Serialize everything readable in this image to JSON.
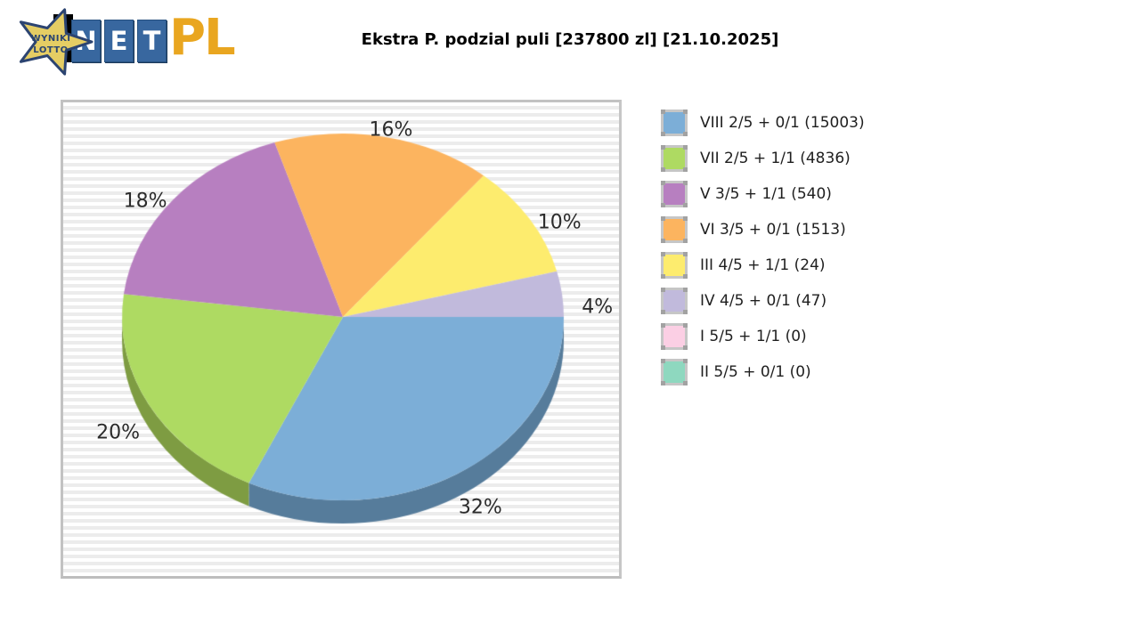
{
  "logo": {
    "badge_line1": "WYNIKI",
    "badge_line2": "LOTTO",
    "net_letters": [
      "N",
      "E",
      "T"
    ],
    "domain_suffix": "PL"
  },
  "header": {
    "title": "Ekstra P. podzial puli [237800 zl] [21.10.2025]"
  },
  "chart_data": {
    "type": "pie",
    "style": "3d",
    "title": "Ekstra P. podzial puli [237800 zl] [21.10.2025]",
    "pool_amount": "237800 zl",
    "draw_date": "21.10.2025",
    "legend_position": "right",
    "slices": [
      {
        "legend_label": "VIII 2/5 + 0/1 (15003)",
        "tier": "VIII 2/5 + 0/1",
        "winners": 15003,
        "pct": 32,
        "color": "#7caed7",
        "side_color": "#567c9b"
      },
      {
        "legend_label": "VII 2/5 + 1/1 (4836)",
        "tier": "VII 2/5 + 1/1",
        "winners": 4836,
        "pct": 20,
        "color": "#aeda62",
        "side_color": "#7e9c42"
      },
      {
        "legend_label": "V 3/5 + 1/1 (540)",
        "tier": "V 3/5 + 1/1",
        "winners": 540,
        "pct": 18,
        "color": "#b77fc0",
        "side_color": "#8c5a94"
      },
      {
        "legend_label": "VI 3/5 + 0/1 (1513)",
        "tier": "VI 3/5 + 0/1",
        "winners": 1513,
        "pct": 16,
        "color": "#fcb45f",
        "side_color": "#c78436"
      },
      {
        "legend_label": "III 4/5 + 1/1 (24)",
        "tier": "III 4/5 + 1/1",
        "winners": 24,
        "pct": 10,
        "color": "#fdec6e",
        "side_color": "#c9b93f"
      },
      {
        "legend_label": "IV 4/5 + 0/1 (47)",
        "tier": "IV 4/5 + 0/1",
        "winners": 47,
        "pct": 4,
        "color": "#c1badc",
        "side_color": "#918aae"
      },
      {
        "legend_label": "I 5/5 + 1/1 (0)",
        "tier": "I 5/5 + 1/1",
        "winners": 0,
        "pct": 0,
        "color": "#fbcfe4",
        "side_color": "#c79fb4"
      },
      {
        "legend_label": "II 5/5 + 0/1 (0)",
        "tier": "II 5/5 + 0/1",
        "winners": 0,
        "pct": 0,
        "color": "#8ed8bf",
        "side_color": "#5ea890"
      }
    ],
    "pct_labels": [
      "32%",
      "20%",
      "18%",
      "16%",
      "10%",
      "4%"
    ]
  }
}
